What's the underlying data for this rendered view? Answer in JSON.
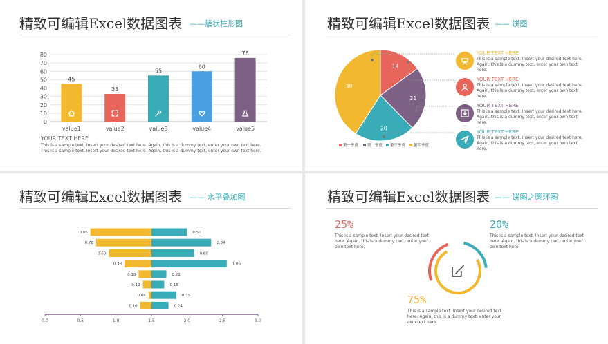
{
  "panels": {
    "p1": {
      "title": "精致可编辑Excel数据图表",
      "subtitle": "——簇状柱形图"
    },
    "p2": {
      "title": "精致可编辑Excel数据图表",
      "subtitle": "—— 饼图"
    },
    "p3": {
      "title": "精致可编辑Excel数据图表",
      "subtitle": "—— 水平叠加图"
    },
    "p4": {
      "title": "精致可编辑Excel数据图表",
      "subtitle": "—— 饼图之圆环图"
    }
  },
  "bar_note": {
    "heading": "YOUR TEXT HERE",
    "body": "This is a sample text. Insert your desired text here. Again, this is a dummy text, enter your own text here. This is a sample text. Insert your desired text here. Again, this is a dummy text, enter your own text here."
  },
  "pie_items": [
    {
      "heading": "YOUR TEXT HERE",
      "body": "This is a sample text. Insert your desired text here. Again, this is a dummy text, enter your own text here.",
      "color": "#f2b830",
      "icon": "presentation-icon"
    },
    {
      "heading": "YOUR TEXT HERE",
      "body": "This is a sample text. Insert your desired text here. Again, this is a dummy text, enter your own text here.",
      "color": "#e8655c",
      "icon": "user-icon"
    },
    {
      "heading": "YOUR TEXT HERE",
      "body": "This is a sample text. Insert your desired text here. Again, this is a dummy text, enter your own text here.",
      "color": "#7d6185",
      "icon": "download-icon"
    },
    {
      "heading": "YOUR TEXT HERE",
      "body": "This is a sample text. Insert your desired text here. Again, this is a dummy text, enter your own text here.",
      "color": "#3aacb8",
      "icon": "send-icon"
    }
  ],
  "ring_notes": [
    {
      "pct": "25%",
      "body": "This is a sample text. Insert your desired text here. Again, this is a dummy text, enter your own text here.",
      "color": "#e8655c"
    },
    {
      "pct": "20%",
      "body": "This is a sample text. Insert your desired text here. Again, this is a dummy text, enter your own text here.",
      "color": "#3aacb8"
    },
    {
      "pct": "75%",
      "body": "This is a sample text. Insert your desired text here. Again, this is a dummy text, enter your own text here.",
      "color": "#f2b830"
    }
  ],
  "ring_icon": "edit-icon",
  "chart_data": [
    {
      "type": "bar",
      "categories": [
        "value1",
        "value2",
        "value3",
        "value4",
        "value5"
      ],
      "values": [
        45,
        33,
        55,
        60,
        76
      ],
      "colors": [
        "#f2b830",
        "#e8655c",
        "#3aacb8",
        "#4a9fe0",
        "#7d6185"
      ],
      "icons": [
        "home-icon",
        "expand-icon",
        "wrench-icon",
        "heart-icon",
        "flask-icon"
      ],
      "yticks": [
        "0",
        "10",
        "20",
        "30",
        "40",
        "50",
        "60",
        "70",
        "80"
      ],
      "ylim": [
        0,
        80
      ],
      "grid": true
    },
    {
      "type": "pie",
      "slices": [
        {
          "label": "第一季度",
          "value": 14,
          "color": "#e8655c"
        },
        {
          "label": "第二季度",
          "value": 21,
          "color": "#7d6185"
        },
        {
          "label": "第三季度",
          "value": 20,
          "color": "#3aacb8"
        },
        {
          "label": "第四季度",
          "value": 38,
          "color": "#f2b830"
        }
      ],
      "legend": "bottom"
    },
    {
      "type": "bar",
      "orientation": "horizontal",
      "xticks": [
        "0.0",
        "0.5",
        "1.0",
        "1.5",
        "2.0",
        "2.5",
        "3.0"
      ],
      "xlim": [
        0,
        3
      ],
      "center": 1.5,
      "rows": [
        {
          "left": 0.86,
          "right": 0.5,
          "left_label": "0.86",
          "right_label": "0.50"
        },
        {
          "left": 0.78,
          "right": 0.84,
          "left_label": "0.78",
          "right_label": "0.84"
        },
        {
          "left": 0.6,
          "right": 0.6,
          "left_label": "0.60",
          "right_label": "0.60"
        },
        {
          "left": 0.38,
          "right": 1.06,
          "left_label": "0.38",
          "right_label": "1.06"
        },
        {
          "left": 0.18,
          "right": 0.21,
          "left_label": "0.18",
          "right_label": "0.21"
        },
        {
          "left": 0.12,
          "right": 0.18,
          "left_label": "0.12",
          "right_label": "0.18"
        },
        {
          "left": 0.04,
          "right": 0.35,
          "left_label": "0.04",
          "right_label": "0.35"
        },
        {
          "left": 0.16,
          "right": 0.24,
          "left_label": "0.16",
          "right_label": "0.24"
        }
      ],
      "left_color": "#f2b830",
      "right_color": "#3aacb8"
    },
    {
      "type": "pie",
      "style": "ring",
      "rings": [
        {
          "label": "25%",
          "value": 25,
          "color": "#e8655c"
        },
        {
          "label": "20%",
          "value": 20,
          "color": "#3aacb8"
        },
        {
          "label": "75%",
          "value": 75,
          "color": "#f2b830"
        }
      ]
    }
  ]
}
